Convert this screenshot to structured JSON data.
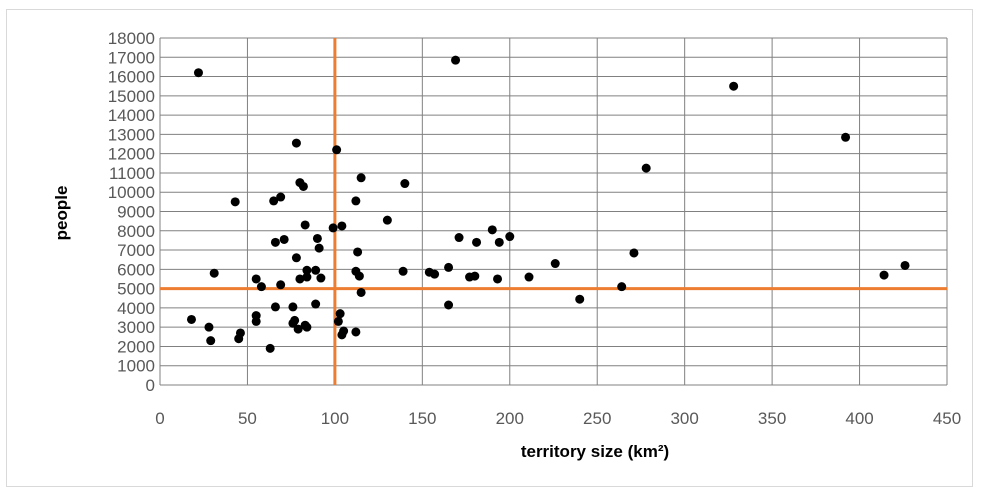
{
  "chart_data": {
    "type": "scatter",
    "title": "",
    "xlabel": "territory size (km²)",
    "ylabel": "people",
    "xlim": [
      0,
      450
    ],
    "ylim": [
      0,
      18000
    ],
    "x_ticks": [
      "0",
      "50",
      "100",
      "150",
      "200",
      "250",
      "300",
      "350",
      "400",
      "450"
    ],
    "y_ticks": [
      "0",
      "1000",
      "2000",
      "3000",
      "4000",
      "5000",
      "6000",
      "7000",
      "8000",
      "9000",
      "10000",
      "11000",
      "12000",
      "13000",
      "14000",
      "15000",
      "16000",
      "17000",
      "18000"
    ],
    "grid": true,
    "reference_lines": {
      "vertical_x": 100,
      "horizontal_y": 5000,
      "color": "#ED7D31"
    },
    "marker_color": "#000000",
    "series": [
      {
        "points": [
          [
            18,
            3400
          ],
          [
            22,
            16200
          ],
          [
            28,
            3000
          ],
          [
            29,
            2300
          ],
          [
            31,
            5800
          ],
          [
            43,
            9500
          ],
          [
            45,
            2400
          ],
          [
            46,
            2700
          ],
          [
            55,
            5500
          ],
          [
            55,
            3600
          ],
          [
            55,
            3300
          ],
          [
            58,
            5100
          ],
          [
            63,
            1900
          ],
          [
            65,
            9550
          ],
          [
            66,
            7400
          ],
          [
            66,
            4050
          ],
          [
            69,
            9750
          ],
          [
            69,
            5200
          ],
          [
            71,
            7550
          ],
          [
            76,
            4050
          ],
          [
            76,
            3200
          ],
          [
            77,
            3350
          ],
          [
            78,
            12550
          ],
          [
            78,
            6600
          ],
          [
            79,
            2900
          ],
          [
            80,
            5500
          ],
          [
            80,
            10500
          ],
          [
            82,
            10300
          ],
          [
            83,
            8300
          ],
          [
            83,
            3100
          ],
          [
            84,
            5950
          ],
          [
            84,
            5600
          ],
          [
            84,
            3000
          ],
          [
            89,
            4200
          ],
          [
            89,
            5950
          ],
          [
            90,
            7600
          ],
          [
            91,
            7100
          ],
          [
            92,
            5550
          ],
          [
            99,
            8150
          ],
          [
            101,
            12200
          ],
          [
            102,
            3300
          ],
          [
            103,
            3700
          ],
          [
            104,
            2600
          ],
          [
            104,
            8250
          ],
          [
            105,
            2800
          ],
          [
            112,
            5900
          ],
          [
            112,
            9550
          ],
          [
            112,
            2750
          ],
          [
            113,
            6900
          ],
          [
            114,
            5650
          ],
          [
            115,
            4800
          ],
          [
            115,
            10750
          ],
          [
            130,
            8550
          ],
          [
            139,
            5900
          ],
          [
            140,
            10450
          ],
          [
            154,
            5850
          ],
          [
            157,
            5750
          ],
          [
            165,
            6100
          ],
          [
            165,
            4150
          ],
          [
            169,
            16850
          ],
          [
            171,
            7650
          ],
          [
            177,
            5600
          ],
          [
            180,
            5650
          ],
          [
            181,
            7400
          ],
          [
            190,
            8050
          ],
          [
            193,
            5500
          ],
          [
            194,
            7400
          ],
          [
            200,
            7700
          ],
          [
            211,
            5600
          ],
          [
            226,
            6300
          ],
          [
            240,
            4450
          ],
          [
            264,
            5100
          ],
          [
            271,
            6850
          ],
          [
            278,
            11250
          ],
          [
            328,
            15500
          ],
          [
            392,
            12850
          ],
          [
            414,
            5700
          ],
          [
            426,
            6200
          ]
        ]
      }
    ]
  }
}
